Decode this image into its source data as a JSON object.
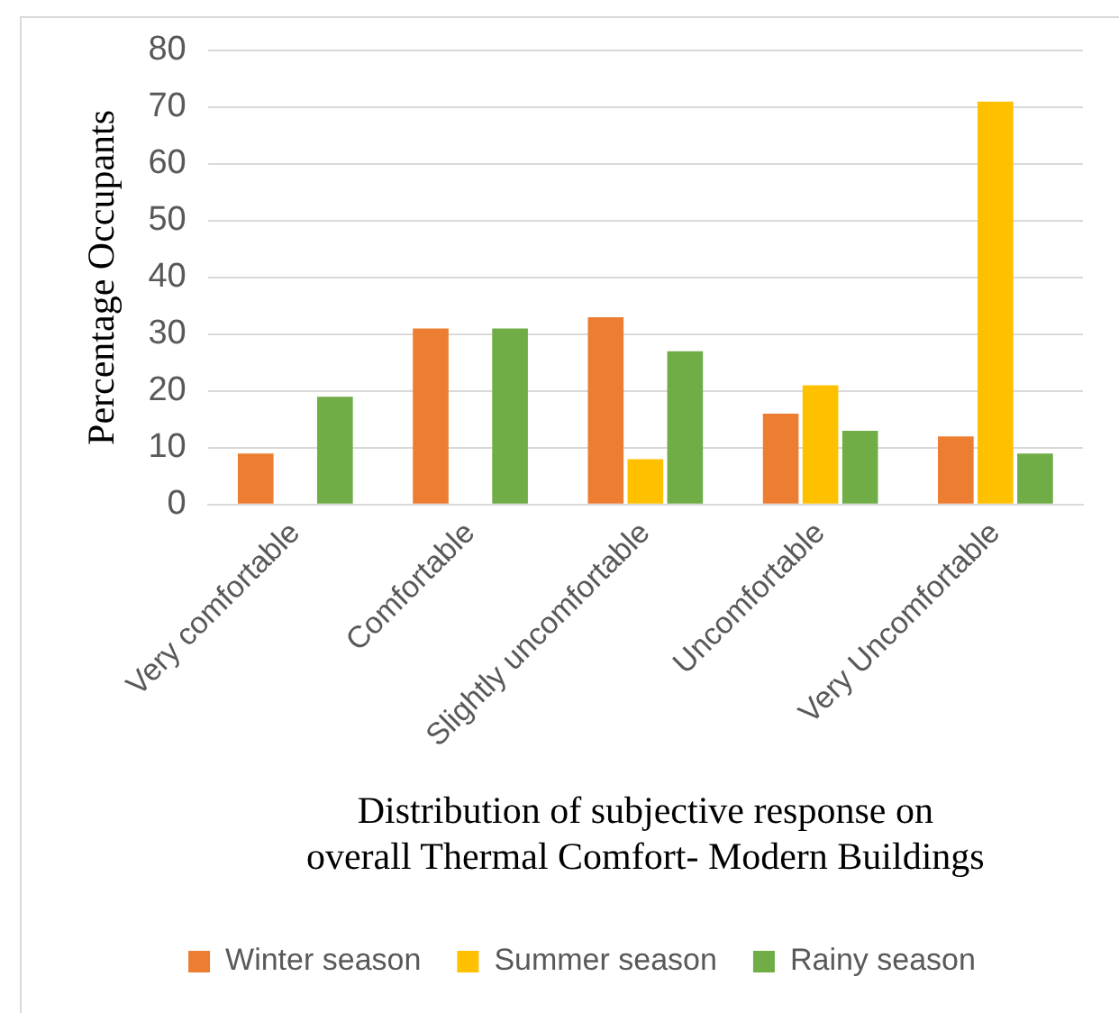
{
  "chart_data": {
    "type": "bar",
    "xlabel": "Distribution of subjective response on overall Thermal Comfort- Modern Buildings",
    "ylabel": "Percentage Occupants",
    "categories": [
      "Very comfortable",
      "Comfortable",
      "Slightly uncomfortable",
      "Uncomfortable",
      "Very Uncomfortable"
    ],
    "series": [
      {
        "name": "Winter season",
        "color": "#ed7d31",
        "values": [
          9,
          31,
          33,
          16,
          12
        ]
      },
      {
        "name": "Summer season",
        "color": "#ffc000",
        "values": [
          0,
          0,
          8,
          21,
          71
        ]
      },
      {
        "name": "Rainy season",
        "color": "#70ad47",
        "values": [
          19,
          31,
          27,
          13,
          9
        ]
      }
    ],
    "ylim": [
      0,
      80
    ],
    "yticks": [
      0,
      10,
      20,
      30,
      40,
      50,
      60,
      70,
      80
    ],
    "grid": "y",
    "legend": "bottom"
  }
}
